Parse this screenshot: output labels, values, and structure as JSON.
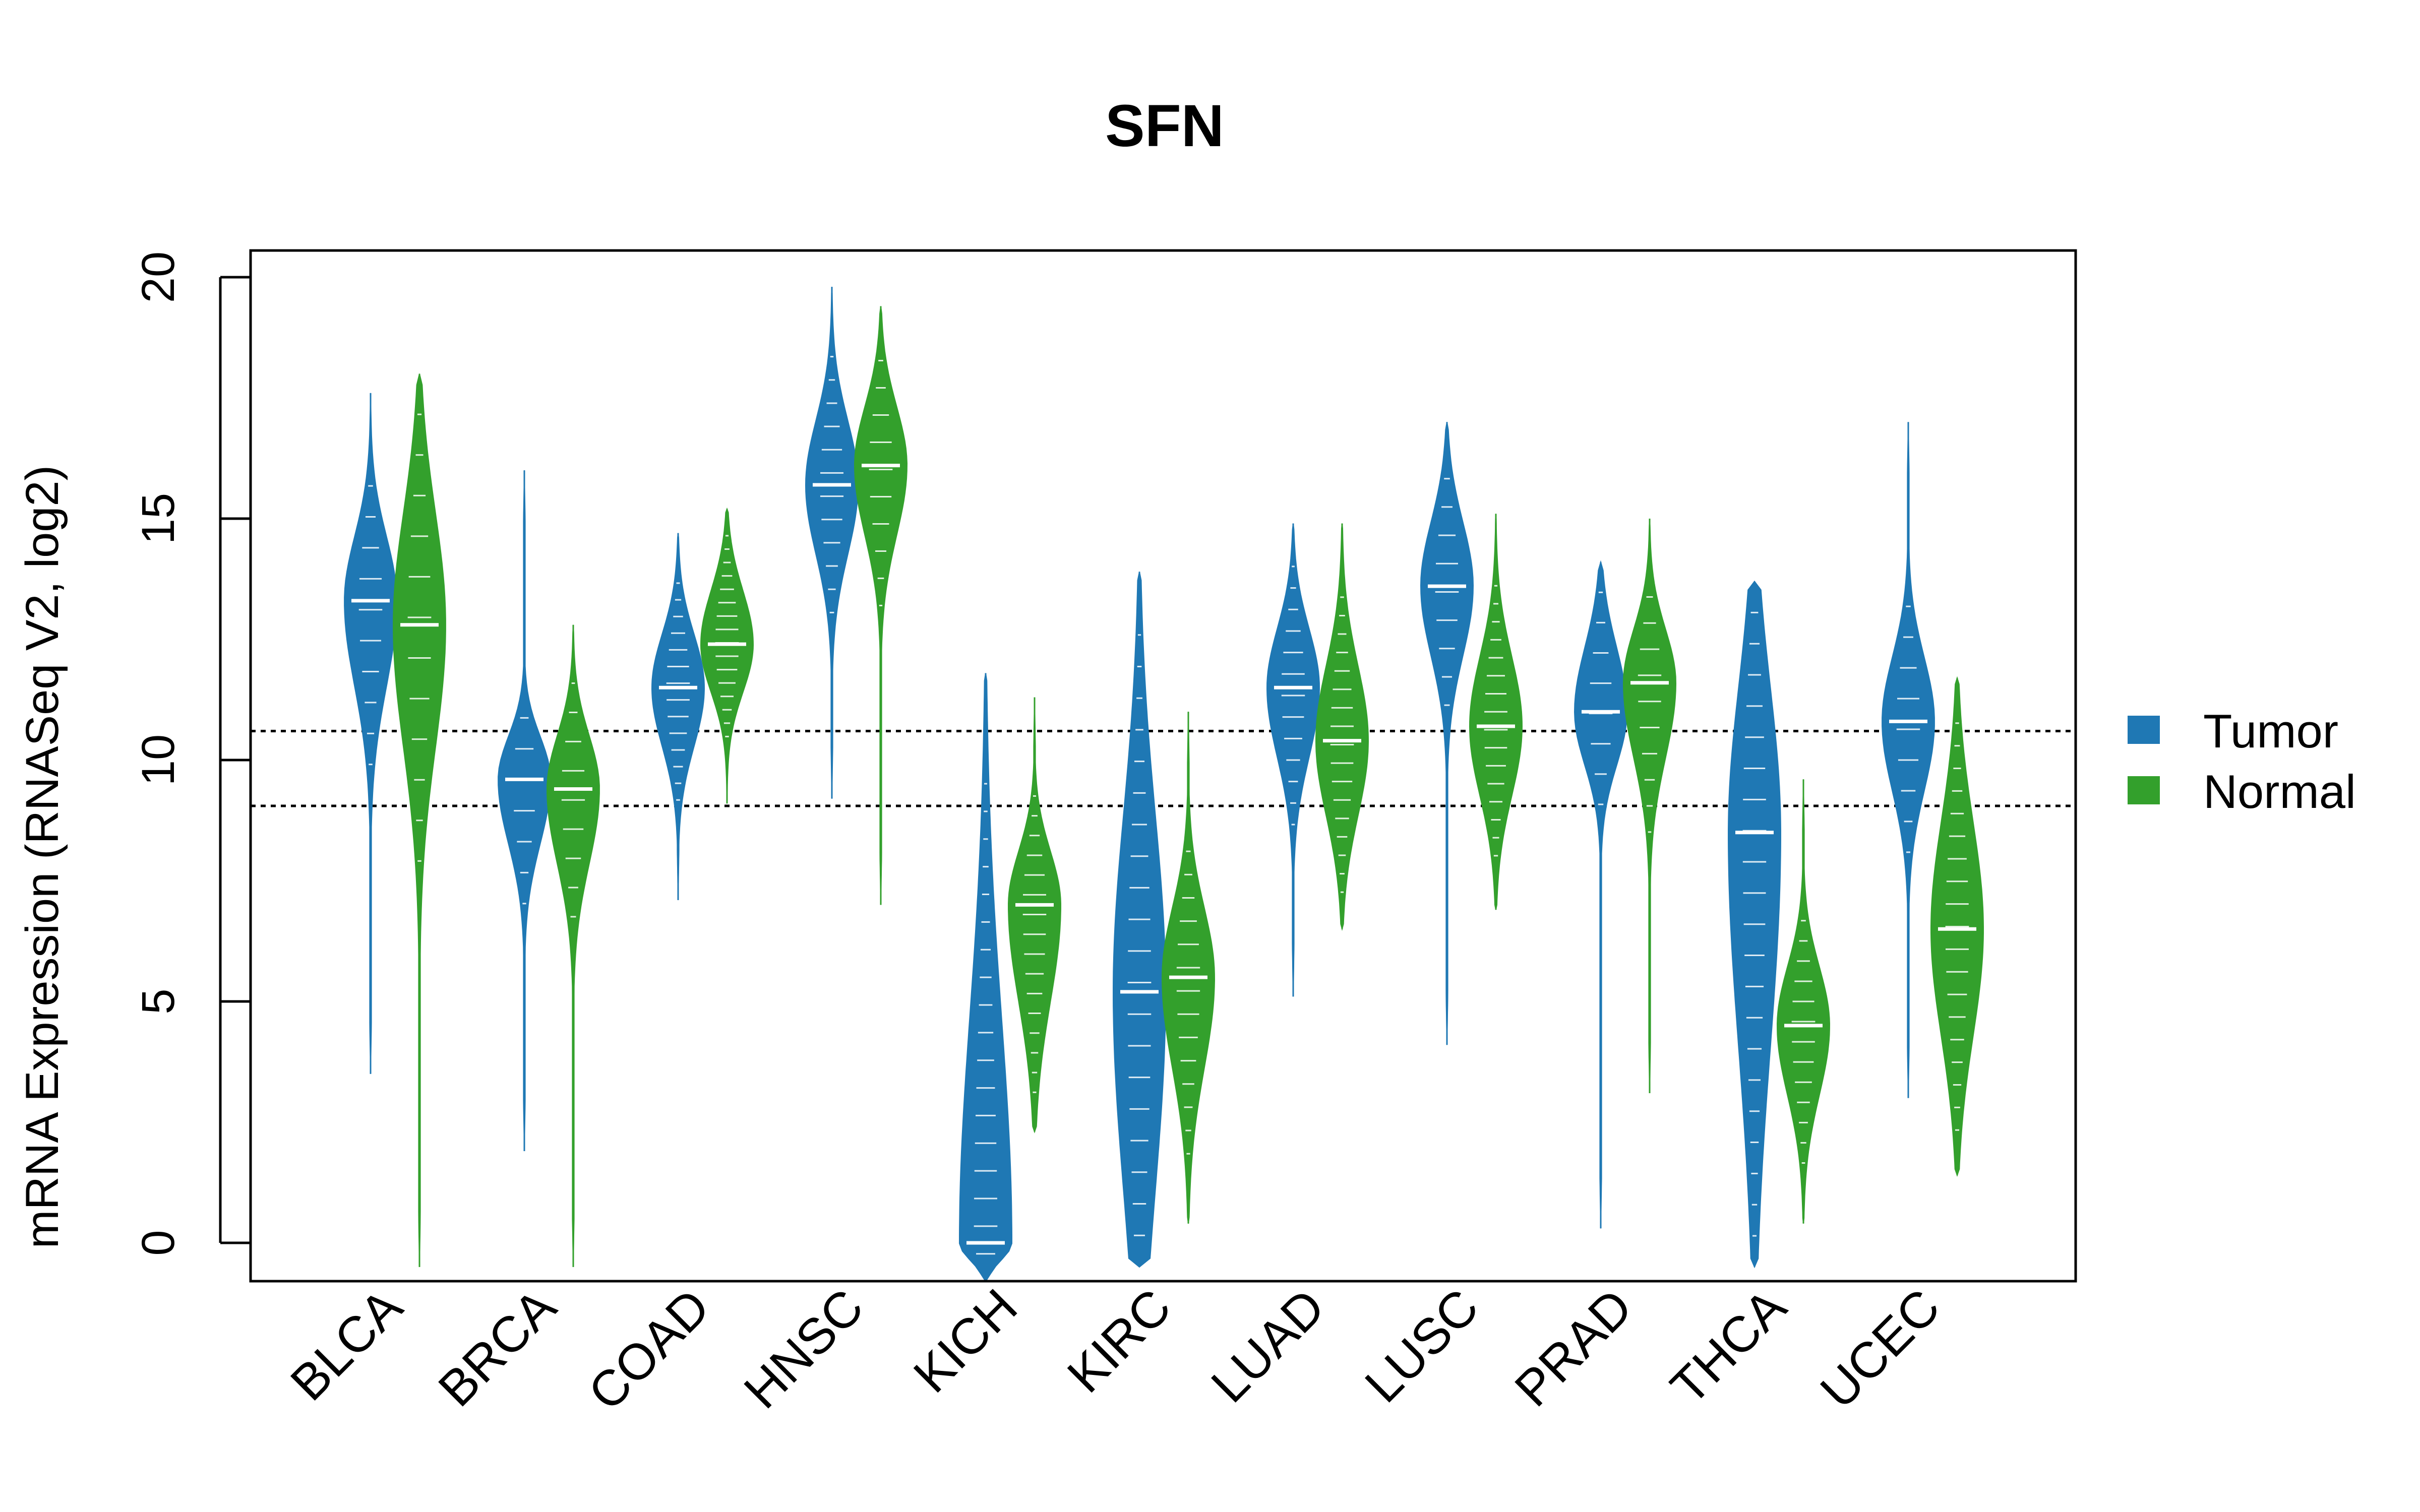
{
  "chart_data": {
    "type": "violin",
    "title": "SFN",
    "xlabel": "",
    "ylabel": "mRNA Expression (RNASeq V2, log2)",
    "ylim": [
      -0.8,
      20.5
    ],
    "yticks": [
      0,
      5,
      10,
      15,
      20
    ],
    "categories": [
      "BLCA",
      "BRCA",
      "COAD",
      "HNSC",
      "KICH",
      "KIRC",
      "LUAD",
      "LUSC",
      "PRAD",
      "THCA",
      "UCEC"
    ],
    "reference_lines": [
      10.6,
      9.05
    ],
    "legend": {
      "position": "right",
      "items": [
        "Tumor",
        "Normal"
      ]
    },
    "colors": {
      "Tumor": "#1f78b4",
      "Normal": "#33a02c"
    },
    "series": [
      {
        "name": "Tumor",
        "median": [
          13.3,
          9.6,
          11.5,
          15.7,
          0.0,
          5.2,
          11.5,
          13.6,
          11.0,
          8.5,
          10.8
        ],
        "min": [
          3.5,
          1.9,
          7.1,
          9.2,
          -0.8,
          -0.5,
          5.1,
          4.1,
          0.3,
          -0.5,
          3.0
        ],
        "max": [
          17.6,
          16.0,
          14.7,
          19.8,
          11.8,
          13.9,
          14.9,
          17.0,
          14.1,
          13.7,
          17.0
        ],
        "q1": [
          11.7,
          8.4,
          10.4,
          14.4,
          1.0,
          1.5,
          10.2,
          12.3,
          10.0,
          4.5,
          9.5
        ],
        "q3": [
          14.5,
          10.4,
          12.5,
          16.9,
          4.2,
          8.5,
          12.6,
          14.8,
          12.2,
          11.2,
          12.0
        ]
      },
      {
        "name": "Normal",
        "median": [
          12.8,
          9.4,
          12.4,
          16.1,
          7.0,
          5.5,
          10.4,
          10.7,
          11.6,
          4.5,
          6.5
        ],
        "min": [
          -0.5,
          -0.5,
          9.1,
          7.0,
          2.3,
          0.4,
          6.5,
          6.9,
          3.1,
          0.4,
          1.4
        ],
        "max": [
          18.0,
          12.8,
          15.2,
          19.4,
          11.3,
          11.0,
          14.9,
          15.1,
          15.0,
          9.6,
          11.7
        ],
        "q1": [
          10.5,
          8.0,
          11.5,
          14.8,
          5.2,
          3.8,
          9.0,
          9.4,
          10.2,
          3.2,
          4.5
        ],
        "q3": [
          14.9,
          10.4,
          13.4,
          17.2,
          8.0,
          6.8,
          11.8,
          12.0,
          12.6,
          5.6,
          8.5
        ]
      }
    ]
  }
}
